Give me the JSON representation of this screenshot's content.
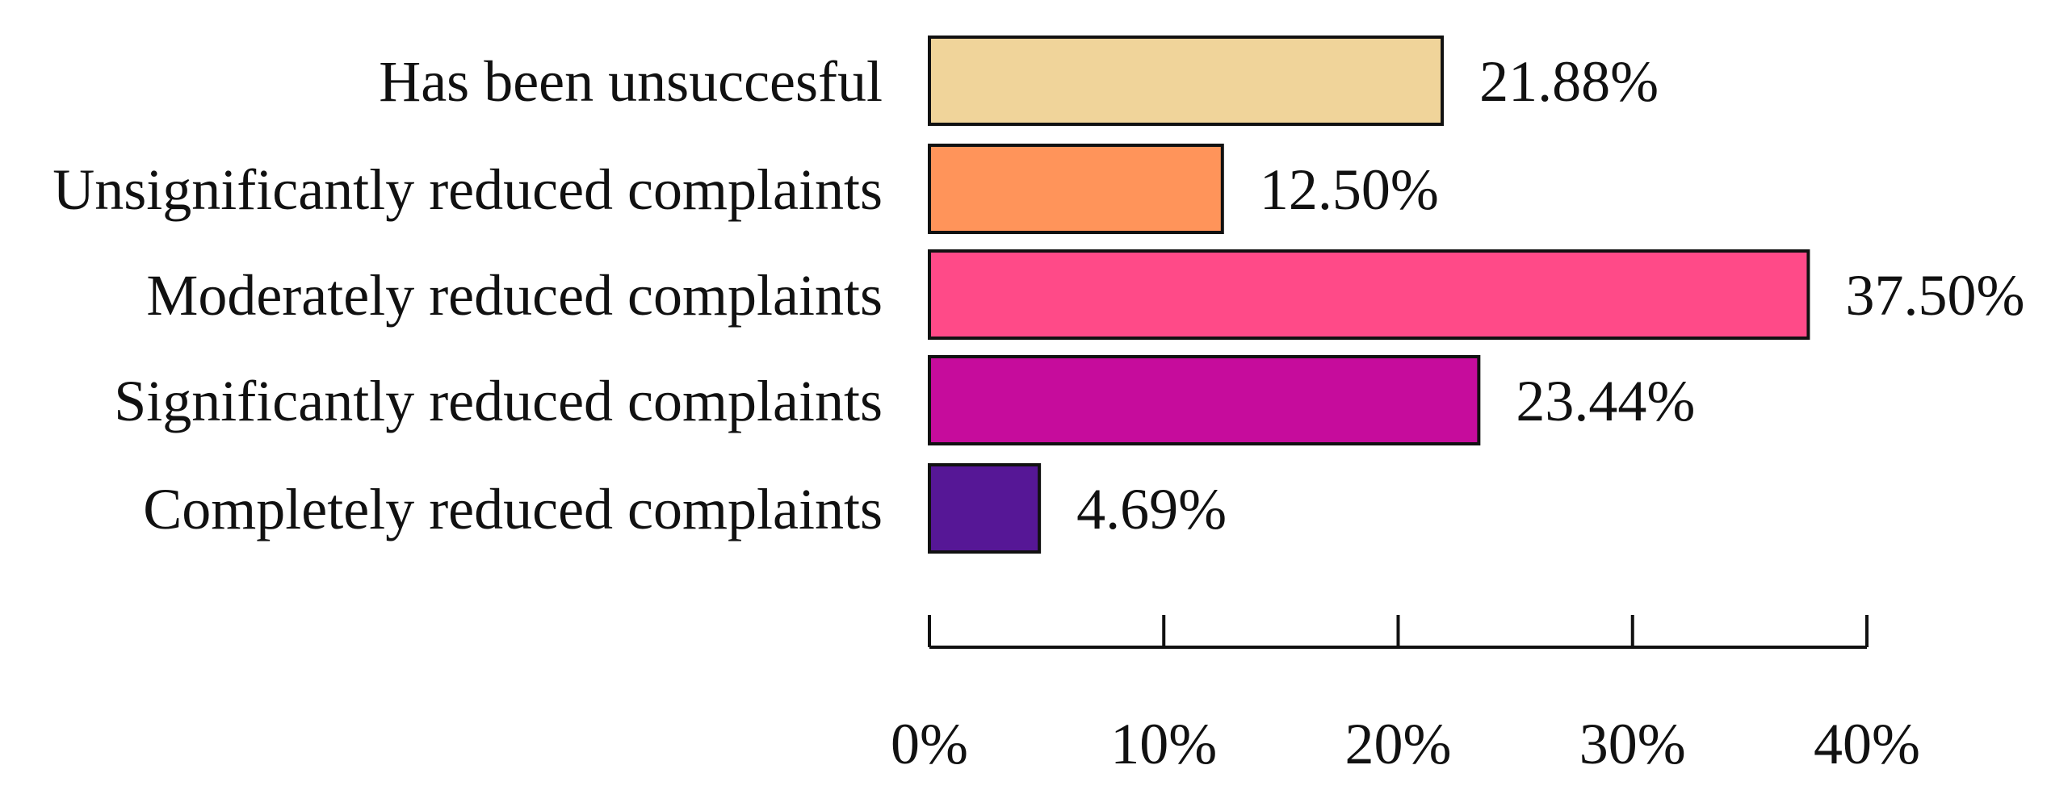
{
  "chart_data": {
    "type": "bar",
    "orientation": "horizontal",
    "categories": [
      "Has been unsuccesful",
      "Unsignificantly reduced complaints",
      "Moderately reduced complaints",
      "Significantly reduced complaints",
      "Completely reduced complaints"
    ],
    "values": [
      21.88,
      12.5,
      37.5,
      23.44,
      4.69
    ],
    "value_labels": [
      "21.88%",
      "12.50%",
      "37.50%",
      "23.44%",
      "4.69%"
    ],
    "colors": [
      "#F0D49A",
      "#FF945A",
      "#FF4A88",
      "#C60C9C",
      "#561796"
    ],
    "x_ticks": [
      0,
      10,
      20,
      30,
      40
    ],
    "x_tick_labels": [
      "0%",
      "10%",
      "20%",
      "30%",
      "40%"
    ],
    "xlim": [
      0,
      40
    ],
    "title": "",
    "xlabel": "",
    "ylabel": "",
    "grid": false,
    "legend": "none"
  }
}
